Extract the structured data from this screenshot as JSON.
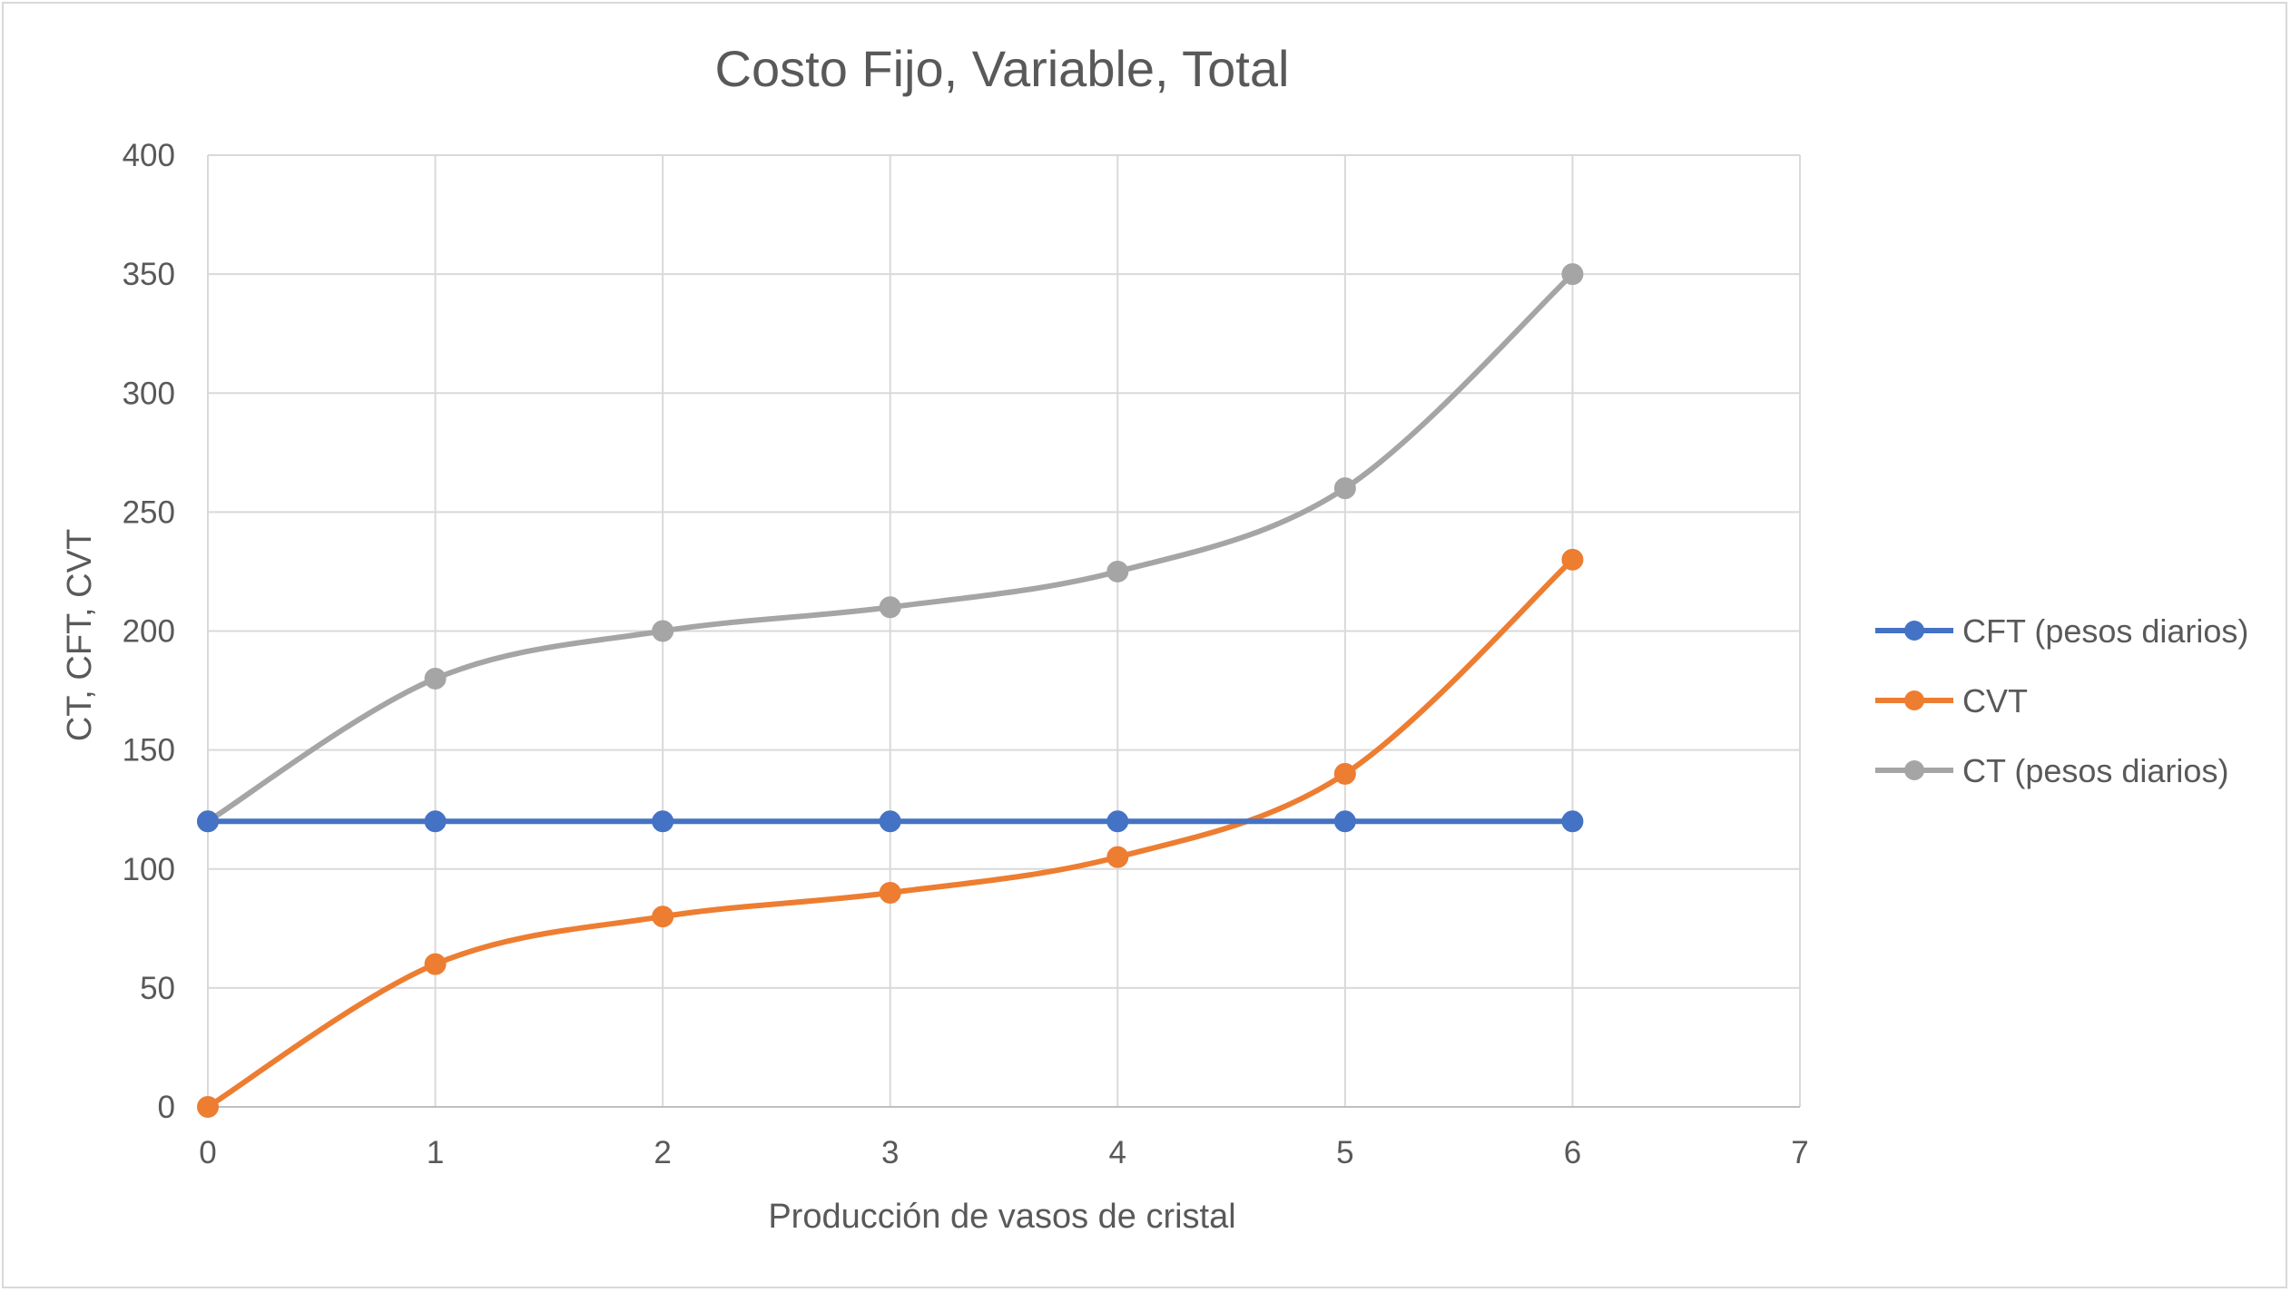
{
  "chart_data": {
    "type": "line",
    "title": "Costo Fijo, Variable, Total",
    "xlabel": "Producción de vasos de cristal",
    "ylabel": "CT, CFT, CVT",
    "x": [
      0,
      1,
      2,
      3,
      4,
      5,
      6
    ],
    "xlim": [
      0,
      7
    ],
    "ylim": [
      0,
      400
    ],
    "x_ticks": [
      0,
      1,
      2,
      3,
      4,
      5,
      6,
      7
    ],
    "y_ticks": [
      0,
      50,
      100,
      150,
      200,
      250,
      300,
      350,
      400
    ],
    "grid": true,
    "smooth": true,
    "legend_position": "right",
    "series": [
      {
        "name": "CFT (pesos diarios)",
        "color": "#4472c4",
        "values": [
          120,
          120,
          120,
          120,
          120,
          120,
          120
        ]
      },
      {
        "name": "CVT",
        "color": "#ed7d31",
        "values": [
          0,
          60,
          80,
          90,
          105,
          140,
          230
        ]
      },
      {
        "name": "CT (pesos diarios)",
        "color": "#a5a5a5",
        "values": [
          120,
          180,
          200,
          210,
          225,
          260,
          350
        ]
      }
    ]
  }
}
